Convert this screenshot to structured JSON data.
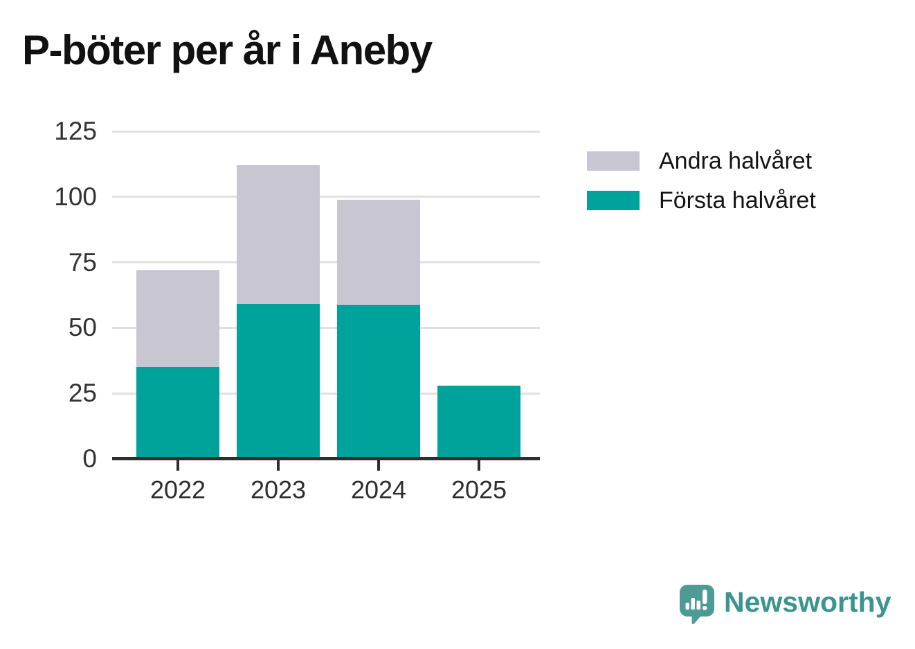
{
  "chart_data": {
    "type": "bar",
    "stacked": true,
    "title": "P-böter per år i Aneby",
    "categories": [
      "2022",
      "2023",
      "2024",
      "2025"
    ],
    "series": [
      {
        "name": "Första halvåret",
        "color": "#00a39b",
        "values": [
          35,
          59,
          59,
          28
        ]
      },
      {
        "name": "Andra halvåret",
        "color": "#c8c6d1",
        "values": [
          37,
          53,
          40,
          0
        ]
      }
    ],
    "xlabel": "",
    "ylabel": "",
    "ylim": [
      0,
      125
    ],
    "yticks": [
      0,
      25,
      50,
      75,
      100,
      125
    ],
    "grid": "horizontal",
    "legend_position": "right",
    "legend_order": [
      "Andra halvåret",
      "Första halvåret"
    ],
    "axis_color": "#2e2e2e",
    "gridline_color": "#e1e0e4"
  },
  "branding": {
    "logo_text": "Newsworthy",
    "logo_color": "#4c9b94",
    "text_color": "#3b948d"
  }
}
